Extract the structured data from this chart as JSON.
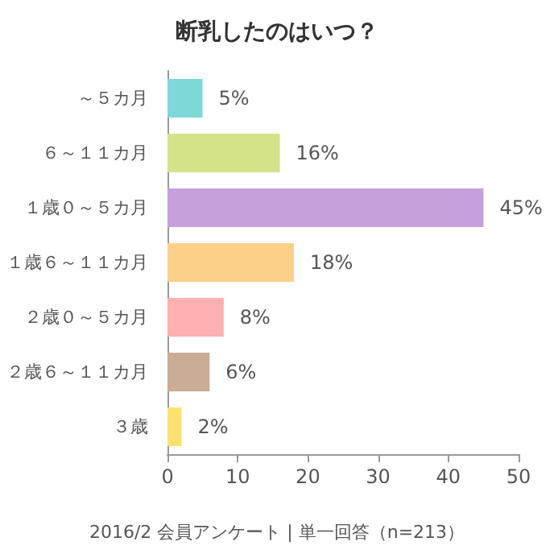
{
  "chart_data": {
    "type": "bar",
    "orientation": "horizontal",
    "title": "断乳したのはいつ？",
    "categories": [
      "～５カ月",
      "６～１１カ月",
      "１歳０～５カ月",
      "１歳６～１１カ月",
      "２歳０～５カ月",
      "２歳６～１１カ月",
      "３歳"
    ],
    "values": [
      5,
      16,
      45,
      18,
      8,
      6,
      2
    ],
    "colors": [
      "#7fd8d8",
      "#d4e38a",
      "#c5a0dc",
      "#fdd08a",
      "#fdb0b0",
      "#c9ad94",
      "#fde070"
    ],
    "value_labels": [
      "5%",
      "16%",
      "45%",
      "18%",
      "8%",
      "6%",
      "2%"
    ],
    "xlim": [
      0,
      50
    ],
    "xticks": [
      0,
      10,
      20,
      30,
      40,
      50
    ],
    "grid": false,
    "annotations": [
      "2016/2 会員アンケート | 単一回答（n=213）"
    ]
  }
}
